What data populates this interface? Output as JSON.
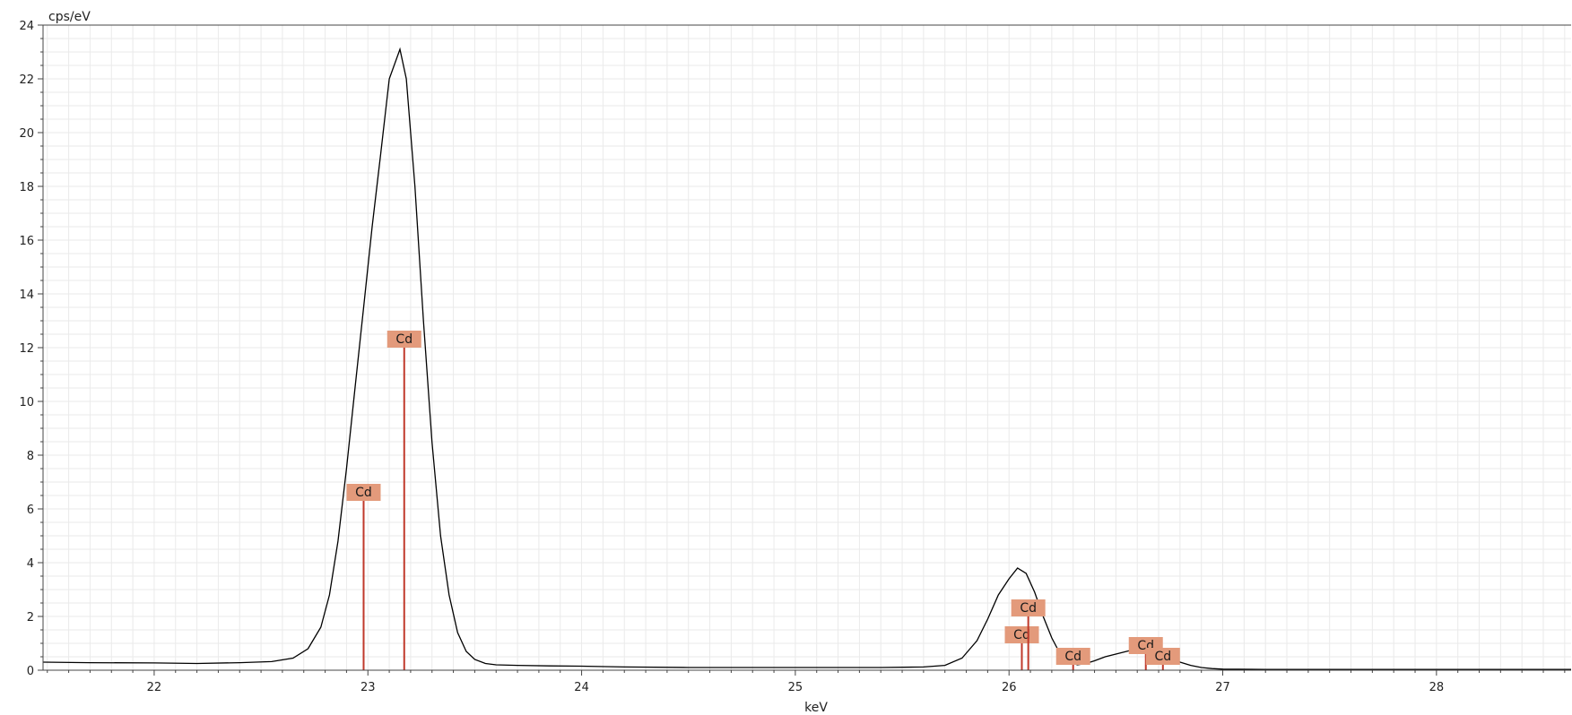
{
  "chart_data": {
    "type": "line",
    "title": "",
    "xlabel": "keV",
    "ylabel": "cps/eV",
    "xlim": [
      21.48,
      28.63
    ],
    "ylim": [
      0,
      24
    ],
    "x_ticks": [
      22,
      23,
      24,
      25,
      26,
      27,
      28
    ],
    "x_minor_step": 0.1,
    "y_ticks": [
      0,
      2,
      4,
      6,
      8,
      10,
      12,
      14,
      16,
      18,
      20,
      22,
      24
    ],
    "y_minor_step": 0.5,
    "grid": true,
    "colors": {
      "spectrum": "#000000",
      "marker_line": "#c0392b",
      "marker_label_bg": "#e39a7b",
      "grid": "#eaeaea",
      "axis": "#444444"
    },
    "spectrum": {
      "x": [
        21.48,
        21.7,
        22.0,
        22.2,
        22.4,
        22.55,
        22.65,
        22.72,
        22.78,
        22.82,
        22.86,
        22.9,
        22.94,
        22.98,
        23.02,
        23.06,
        23.1,
        23.15,
        23.18,
        23.22,
        23.26,
        23.3,
        23.34,
        23.38,
        23.42,
        23.46,
        23.5,
        23.55,
        23.6,
        23.7,
        23.85,
        24.0,
        24.2,
        24.5,
        24.8,
        25.1,
        25.4,
        25.6,
        25.7,
        25.78,
        25.85,
        25.9,
        25.95,
        26.0,
        26.04,
        26.08,
        26.12,
        26.16,
        26.2,
        26.24,
        26.28,
        26.32,
        26.36,
        26.4,
        26.45,
        26.5,
        26.55,
        26.6,
        26.65,
        26.7,
        26.75,
        26.8,
        26.85,
        26.9,
        26.95,
        27.0,
        27.2,
        27.5,
        28.0,
        28.3,
        28.63
      ],
      "y": [
        0.3,
        0.28,
        0.27,
        0.25,
        0.28,
        0.32,
        0.45,
        0.8,
        1.6,
        2.8,
        4.8,
        7.5,
        10.5,
        13.5,
        16.5,
        19.2,
        22.0,
        23.1,
        22.0,
        18.0,
        13.0,
        8.5,
        5.0,
        2.8,
        1.4,
        0.7,
        0.4,
        0.25,
        0.2,
        0.18,
        0.16,
        0.15,
        0.12,
        0.1,
        0.1,
        0.1,
        0.1,
        0.12,
        0.18,
        0.45,
        1.1,
        1.9,
        2.8,
        3.4,
        3.8,
        3.6,
        2.9,
        2.0,
        1.2,
        0.6,
        0.3,
        0.2,
        0.25,
        0.35,
        0.5,
        0.6,
        0.7,
        0.8,
        0.75,
        0.6,
        0.45,
        0.3,
        0.18,
        0.1,
        0.06,
        0.04,
        0.03,
        0.03,
        0.03,
        0.03,
        0.03
      ]
    },
    "markers": [
      {
        "label": "Cd",
        "energy": 22.98,
        "height": 6.3
      },
      {
        "label": "Cd",
        "energy": 23.17,
        "height": 12.0
      },
      {
        "label": "Cd",
        "energy": 26.06,
        "height": 1.0
      },
      {
        "label": "Cd",
        "energy": 26.09,
        "height": 2.0
      },
      {
        "label": "Cd",
        "energy": 26.3,
        "height": 0.2
      },
      {
        "label": "Cd",
        "energy": 26.64,
        "height": 0.6
      },
      {
        "label": "Cd",
        "energy": 26.72,
        "height": 0.2
      }
    ]
  }
}
